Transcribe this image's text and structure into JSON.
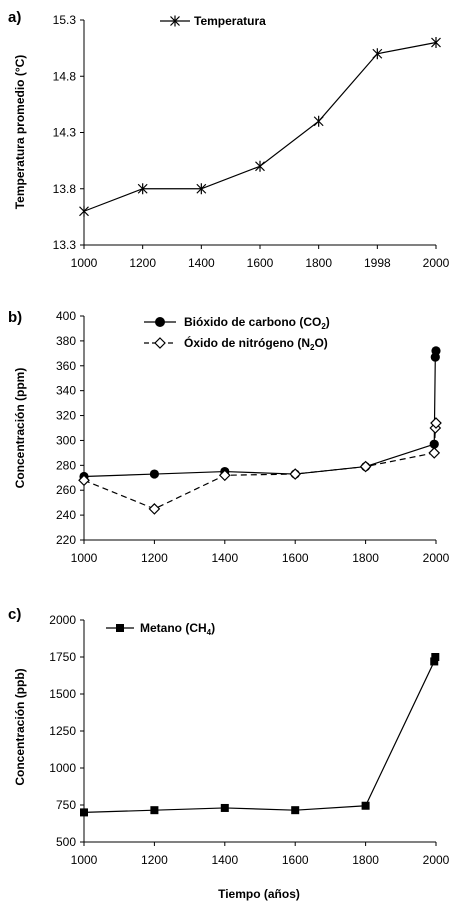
{
  "chart_data": [
    {
      "type": "line",
      "panel_label": "a)",
      "ylabel": "Temperatura promedio (°C)",
      "xlabel": "",
      "categories": [
        "1000",
        "1200",
        "1400",
        "1600",
        "1800",
        "1998",
        "2000"
      ],
      "yticks": [
        "13.3",
        "13.8",
        "14.3",
        "14.8",
        "15.3"
      ],
      "ylim": [
        13.3,
        15.3
      ],
      "grid": false,
      "legend_position": "top-left",
      "series": [
        {
          "name": "Temperatura",
          "marker": "asterisk",
          "style": "solid",
          "values": [
            13.6,
            13.8,
            13.8,
            14.0,
            14.4,
            15.0,
            15.1
          ]
        }
      ]
    },
    {
      "type": "line",
      "panel_label": "b)",
      "ylabel": "Concentración (ppm)",
      "xlabel": "",
      "xlim": [
        1000,
        2000
      ],
      "xticks": [
        "1000",
        "1200",
        "1400",
        "1600",
        "1800",
        "2000"
      ],
      "yticks": [
        "220",
        "240",
        "260",
        "280",
        "300",
        "320",
        "340",
        "360",
        "380",
        "400"
      ],
      "ylim": [
        220,
        400
      ],
      "grid": false,
      "legend_position": "top-center",
      "series": [
        {
          "name": "Bióxido de carbono (CO2)",
          "name_main": "Bióxido de carbono (CO",
          "name_sub": "2",
          "name_tail": ")",
          "marker": "filled-circle",
          "style": "solid",
          "x": [
            1000,
            1200,
            1400,
            1600,
            1800,
            1995,
            1998,
            2000
          ],
          "y": [
            271,
            273,
            275,
            273,
            279,
            297,
            367,
            372
          ]
        },
        {
          "name": "Óxido de nitrógeno (N2O)",
          "name_main": "Óxido de nitrógeno (N",
          "name_sub": "2",
          "name_tail": "O)",
          "marker": "open-diamond",
          "style": "dashed",
          "x": [
            1000,
            1200,
            1400,
            1600,
            1800,
            1995,
            1998,
            2000
          ],
          "y": [
            268,
            245,
            272,
            273,
            279,
            290,
            310,
            314
          ]
        }
      ]
    },
    {
      "type": "line",
      "panel_label": "c)",
      "ylabel": "Concentración (ppb)",
      "xlabel": "Tiempo (años)",
      "xlim": [
        1000,
        2000
      ],
      "xticks": [
        "1000",
        "1200",
        "1400",
        "1600",
        "1800",
        "2000"
      ],
      "yticks": [
        "500",
        "750",
        "1000",
        "1250",
        "1500",
        "1750",
        "2000"
      ],
      "ylim": [
        500,
        2000
      ],
      "grid": false,
      "legend_position": "top-left",
      "series": [
        {
          "name": "Metano (CH4)",
          "name_main": "Metano (CH",
          "name_sub": "4",
          "name_tail": ")",
          "marker": "filled-square",
          "style": "solid",
          "x": [
            1000,
            1200,
            1400,
            1600,
            1800,
            1995,
            1998
          ],
          "y": [
            700,
            715,
            730,
            715,
            745,
            1720,
            1750
          ]
        }
      ]
    }
  ]
}
